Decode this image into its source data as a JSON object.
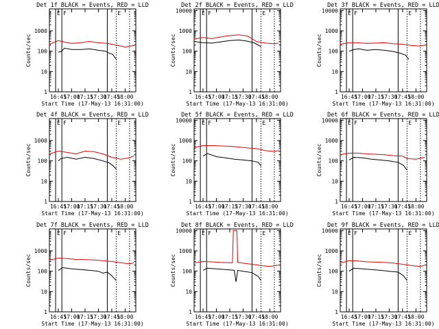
{
  "figure": {
    "xlabel": "Start Time (17-May-13 16:31:00)",
    "ylabel": "Counts/sec",
    "colors": {
      "events": "#000000",
      "lld": "#e00000",
      "axes": "#000000",
      "background": "#ffffff"
    }
  },
  "chart_data": [
    {
      "type": "line",
      "title": "Det 1f BLACK = Events, RED = LLD",
      "ylim": [
        1,
        12000
      ],
      "yscale": "log",
      "xlim": [
        "16:35",
        "18:12"
      ],
      "yticks": [
        "1",
        "10",
        "100",
        "1000"
      ],
      "xticks": [
        "16:45",
        "17:00",
        "17:15",
        "17:30",
        "17:45",
        "18:00"
      ],
      "markers": [
        {
          "time": "16:42",
          "style": "solid",
          "label": "E"
        },
        {
          "time": "16:49",
          "style": "solid",
          "label": "F"
        },
        {
          "time": "17:40",
          "style": "solid",
          "label": ""
        },
        {
          "time": "17:50",
          "style": "dotted",
          "label": "E"
        },
        {
          "time": "18:05",
          "style": "dotted",
          "label": ""
        }
      ],
      "series": [
        {
          "name": "BLACK = Events",
          "color": "#000000",
          "x": [
            "16:45",
            "16:48",
            "16:52",
            "17:00",
            "17:10",
            "17:20",
            "17:30",
            "17:38",
            "17:41",
            "17:46",
            "17:50"
          ],
          "y": [
            90,
            95,
            140,
            120,
            120,
            130,
            110,
            100,
            85,
            70,
            40
          ]
        },
        {
          "name": "RED = LLD",
          "color": "#e00000",
          "x": [
            "16:35",
            "16:45",
            "16:52",
            "17:00",
            "17:10",
            "17:20",
            "17:30",
            "17:40",
            "17:50",
            "18:00",
            "18:10"
          ],
          "y": [
            220,
            330,
            280,
            240,
            260,
            300,
            260,
            240,
            200,
            160,
            190
          ]
        }
      ]
    },
    {
      "type": "line",
      "title": "Det 2f BLACK = Events, RED = LLD",
      "ylim": [
        1,
        12000
      ],
      "yscale": "log",
      "xlim": [
        "16:35",
        "18:12"
      ],
      "yticks": [
        "1",
        "10",
        "100",
        "1000",
        "10000"
      ],
      "xticks": [
        "16:45",
        "17:00",
        "17:15",
        "17:30",
        "17:45",
        "18:00"
      ],
      "markers": [
        {
          "time": "16:42",
          "style": "solid",
          "label": "E"
        },
        {
          "time": "16:49",
          "style": "solid",
          "label": "F"
        },
        {
          "time": "17:40",
          "style": "solid",
          "label": ""
        },
        {
          "time": "17:50",
          "style": "dotted",
          "label": "E"
        },
        {
          "time": "18:05",
          "style": "dotted",
          "label": ""
        }
      ],
      "series": [
        {
          "name": "BLACK = Events",
          "color": "#000000",
          "x": [
            "16:35",
            "16:45",
            "16:55",
            "17:05",
            "17:15",
            "17:25",
            "17:35",
            "17:42",
            "17:50"
          ],
          "y": [
            300,
            260,
            250,
            290,
            330,
            360,
            310,
            260,
            170
          ]
        },
        {
          "name": "RED = LLD",
          "color": "#e00000",
          "x": [
            "16:35",
            "16:45",
            "16:55",
            "17:05",
            "17:15",
            "17:25",
            "17:35",
            "17:45",
            "17:55",
            "18:05",
            "18:10"
          ],
          "y": [
            400,
            470,
            420,
            500,
            580,
            640,
            560,
            300,
            250,
            230,
            250
          ]
        }
      ]
    },
    {
      "type": "line",
      "title": "Det 3f BLACK = Events, RED = LLD",
      "ylim": [
        1,
        12000
      ],
      "yscale": "log",
      "xlim": [
        "16:35",
        "18:12"
      ],
      "yticks": [
        "1",
        "10",
        "100",
        "1000",
        "10000"
      ],
      "xticks": [
        "16:45",
        "17:00",
        "17:15",
        "17:30",
        "17:45",
        "18:00"
      ],
      "markers": [
        {
          "time": "16:42",
          "style": "solid",
          "label": "E"
        },
        {
          "time": "16:49",
          "style": "solid",
          "label": "F"
        },
        {
          "time": "17:40",
          "style": "solid",
          "label": ""
        },
        {
          "time": "17:50",
          "style": "dotted",
          "label": "E"
        },
        {
          "time": "18:05",
          "style": "dotted",
          "label": ""
        }
      ],
      "series": [
        {
          "name": "BLACK = Events",
          "color": "#000000",
          "x": [
            "16:45",
            "16:50",
            "16:56",
            "17:05",
            "17:15",
            "17:25",
            "17:35",
            "17:42",
            "17:48",
            "17:52"
          ],
          "y": [
            100,
            120,
            130,
            110,
            120,
            110,
            95,
            80,
            65,
            40
          ]
        },
        {
          "name": "RED = LLD",
          "color": "#e00000",
          "x": [
            "16:35",
            "16:45",
            "16:55",
            "17:05",
            "17:15",
            "17:25",
            "17:35",
            "17:45",
            "17:55",
            "18:05",
            "18:10"
          ],
          "y": [
            220,
            260,
            260,
            240,
            250,
            260,
            230,
            220,
            190,
            180,
            200
          ]
        }
      ]
    },
    {
      "type": "line",
      "title": "Det 4f BLACK = Events, RED = LLD",
      "ylim": [
        1,
        12000
      ],
      "yscale": "log",
      "xlim": [
        "16:35",
        "18:12"
      ],
      "yticks": [
        "1",
        "10",
        "100",
        "1000"
      ],
      "xticks": [
        "16:45",
        "17:00",
        "17:15",
        "17:30",
        "17:45",
        "18:00"
      ],
      "markers": [
        {
          "time": "16:42",
          "style": "solid",
          "label": "E"
        },
        {
          "time": "16:49",
          "style": "solid",
          "label": "F"
        },
        {
          "time": "17:40",
          "style": "solid",
          "label": ""
        },
        {
          "time": "17:50",
          "style": "dotted",
          "label": "E"
        },
        {
          "time": "18:05",
          "style": "dotted",
          "label": ""
        }
      ],
      "series": [
        {
          "name": "BLACK = Events",
          "color": "#000000",
          "x": [
            "16:45",
            "16:48",
            "16:55",
            "17:05",
            "17:15",
            "17:25",
            "17:35",
            "17:42",
            "17:46",
            "17:50"
          ],
          "y": [
            100,
            130,
            150,
            120,
            150,
            130,
            100,
            80,
            60,
            40
          ]
        },
        {
          "name": "RED = LLD",
          "color": "#e00000",
          "x": [
            "16:35",
            "16:45",
            "16:55",
            "17:05",
            "17:15",
            "17:25",
            "17:35",
            "17:45",
            "17:55",
            "18:05",
            "18:10"
          ],
          "y": [
            220,
            300,
            260,
            220,
            300,
            280,
            220,
            150,
            120,
            140,
            180
          ]
        }
      ]
    },
    {
      "type": "line",
      "title": "Det 5f BLACK = Events, RED = LLD",
      "ylim": [
        1,
        12000
      ],
      "yscale": "log",
      "xlim": [
        "16:35",
        "18:12"
      ],
      "yticks": [
        "1",
        "10",
        "100",
        "1000",
        "10000"
      ],
      "xticks": [
        "16:45",
        "17:00",
        "17:15",
        "17:30",
        "17:45",
        "18:00"
      ],
      "markers": [
        {
          "time": "16:42",
          "style": "solid",
          "label": "E"
        },
        {
          "time": "16:49",
          "style": "solid",
          "label": "F"
        },
        {
          "time": "17:40",
          "style": "solid",
          "label": ""
        },
        {
          "time": "17:50",
          "style": "dotted",
          "label": "E"
        },
        {
          "time": "18:05",
          "style": "dotted",
          "label": ""
        }
      ],
      "series": [
        {
          "name": "BLACK = Events",
          "color": "#000000",
          "x": [
            "16:45",
            "16:50",
            "17:00",
            "17:10",
            "17:20",
            "17:30",
            "17:40",
            "17:47",
            "17:50"
          ],
          "y": [
            170,
            230,
            160,
            140,
            120,
            110,
            100,
            85,
            55
          ]
        },
        {
          "name": "RED = LLD",
          "color": "#e00000",
          "x": [
            "16:35",
            "16:45",
            "16:55",
            "17:05",
            "17:15",
            "17:25",
            "17:35",
            "17:45",
            "17:55",
            "18:05",
            "18:10"
          ],
          "y": [
            450,
            560,
            560,
            540,
            520,
            480,
            430,
            400,
            320,
            290,
            320
          ]
        }
      ]
    },
    {
      "type": "line",
      "title": "Det 6f BLACK = Events, RED = LLD",
      "ylim": [
        1,
        12000
      ],
      "yscale": "log",
      "xlim": [
        "16:35",
        "18:12"
      ],
      "yticks": [
        "1",
        "10",
        "100",
        "1000",
        "10000"
      ],
      "xticks": [
        "16:45",
        "17:00",
        "17:15",
        "17:30",
        "17:45",
        "18:00"
      ],
      "markers": [
        {
          "time": "16:42",
          "style": "solid",
          "label": "E"
        },
        {
          "time": "16:49",
          "style": "solid",
          "label": "F"
        },
        {
          "time": "17:40",
          "style": "solid",
          "label": ""
        },
        {
          "time": "17:50",
          "style": "dotted",
          "label": "E"
        },
        {
          "time": "18:05",
          "style": "dotted",
          "label": ""
        }
      ],
      "series": [
        {
          "name": "BLACK = Events",
          "color": "#000000",
          "x": [
            "16:45",
            "16:50",
            "17:00",
            "17:10",
            "17:20",
            "17:30",
            "17:40",
            "17:46",
            "17:50"
          ],
          "y": [
            110,
            150,
            140,
            120,
            110,
            100,
            85,
            60,
            35
          ]
        },
        {
          "name": "RED = LLD",
          "color": "#e00000",
          "x": [
            "16:35",
            "16:45",
            "16:55",
            "17:05",
            "17:15",
            "17:25",
            "17:35",
            "17:45",
            "17:50",
            "18:00",
            "18:10"
          ],
          "y": [
            200,
            240,
            240,
            220,
            210,
            200,
            180,
            170,
            130,
            120,
            150
          ]
        }
      ]
    },
    {
      "type": "line",
      "title": "Det 7f BLACK = Events, RED = LLD",
      "ylim": [
        1,
        12000
      ],
      "yscale": "log",
      "xlim": [
        "16:35",
        "18:12"
      ],
      "yticks": [
        "1",
        "10",
        "100",
        "1000"
      ],
      "xticks": [
        "16:45",
        "17:00",
        "17:15",
        "17:30",
        "17:45",
        "18:00"
      ],
      "markers": [
        {
          "time": "16:42",
          "style": "solid",
          "label": "E"
        },
        {
          "time": "16:49",
          "style": "solid",
          "label": "F"
        },
        {
          "time": "17:40",
          "style": "solid",
          "label": ""
        },
        {
          "time": "17:50",
          "style": "dotted",
          "label": "E"
        },
        {
          "time": "18:05",
          "style": "dotted",
          "label": ""
        }
      ],
      "series": [
        {
          "name": "BLACK = Events",
          "color": "#000000",
          "x": [
            "16:45",
            "16:50",
            "17:00",
            "17:10",
            "17:20",
            "17:30",
            "17:35",
            "17:40",
            "17:45",
            "17:50"
          ],
          "y": [
            110,
            150,
            130,
            120,
            110,
            100,
            80,
            90,
            60,
            35
          ]
        },
        {
          "name": "RED = LLD",
          "color": "#e00000",
          "x": [
            "16:35",
            "16:45",
            "16:55",
            "17:05",
            "17:15",
            "17:25",
            "17:35",
            "17:45",
            "17:55",
            "18:05",
            "18:10"
          ],
          "y": [
            350,
            440,
            420,
            380,
            370,
            360,
            330,
            300,
            260,
            230,
            260
          ]
        }
      ]
    },
    {
      "type": "line",
      "title": "Det 8f BLACK = Events, RED = LLD",
      "ylim": [
        1,
        12000
      ],
      "yscale": "log",
      "xlim": [
        "16:35",
        "18:12"
      ],
      "yticks": [
        "1",
        "10",
        "100",
        "1000",
        "10000"
      ],
      "xticks": [
        "16:45",
        "17:00",
        "17:15",
        "17:30",
        "17:45",
        "18:00"
      ],
      "markers": [
        {
          "time": "16:42",
          "style": "solid",
          "label": "E"
        },
        {
          "time": "16:49",
          "style": "solid",
          "label": "F"
        },
        {
          "time": "17:40",
          "style": "solid",
          "label": ""
        },
        {
          "time": "17:50",
          "style": "dotted",
          "label": "E"
        },
        {
          "time": "18:05",
          "style": "dotted",
          "label": ""
        }
      ],
      "series": [
        {
          "name": "BLACK = Events",
          "color": "#000000",
          "x": [
            "16:45",
            "16:50",
            "17:00",
            "17:10",
            "17:20",
            "17:22",
            "17:24",
            "17:30",
            "17:40",
            "17:47",
            "17:50"
          ],
          "y": [
            110,
            140,
            130,
            120,
            110,
            30,
            110,
            100,
            85,
            55,
            35
          ]
        },
        {
          "name": "RED = LLD",
          "color": "#e00000",
          "x": [
            "16:35",
            "16:45",
            "16:55",
            "17:05",
            "17:15",
            "17:18",
            "17:19",
            "17:23",
            "17:24",
            "17:30",
            "17:40",
            "17:50",
            "18:00",
            "18:10"
          ],
          "y": [
            250,
            300,
            290,
            270,
            260,
            260,
            10000,
            10000,
            270,
            250,
            220,
            190,
            170,
            200
          ]
        }
      ]
    },
    {
      "type": "line",
      "title": "Det 9f BLACK = Events, RED = LLD",
      "ylim": [
        1,
        12000
      ],
      "yscale": "log",
      "xlim": [
        "16:35",
        "18:12"
      ],
      "yticks": [
        "1",
        "10",
        "100",
        "1000",
        "10000"
      ],
      "xticks": [
        "16:45",
        "17:00",
        "17:15",
        "17:30",
        "17:45",
        "18:00"
      ],
      "markers": [
        {
          "time": "16:42",
          "style": "solid",
          "label": "E"
        },
        {
          "time": "16:49",
          "style": "solid",
          "label": "F"
        },
        {
          "time": "17:40",
          "style": "solid",
          "label": ""
        },
        {
          "time": "17:50",
          "style": "dotted",
          "label": "E"
        },
        {
          "time": "18:05",
          "style": "dotted",
          "label": ""
        }
      ],
      "series": [
        {
          "name": "BLACK = Events",
          "color": "#000000",
          "x": [
            "16:45",
            "16:50",
            "17:00",
            "17:10",
            "17:20",
            "17:30",
            "17:40",
            "17:46",
            "17:50"
          ],
          "y": [
            100,
            140,
            130,
            120,
            110,
            100,
            90,
            60,
            35
          ]
        },
        {
          "name": "RED = LLD",
          "color": "#e00000",
          "x": [
            "16:35",
            "16:45",
            "16:55",
            "17:05",
            "17:15",
            "17:25",
            "17:35",
            "17:45",
            "17:55",
            "18:05",
            "18:10"
          ],
          "y": [
            250,
            330,
            320,
            290,
            280,
            270,
            250,
            220,
            190,
            170,
            200
          ]
        }
      ]
    }
  ]
}
